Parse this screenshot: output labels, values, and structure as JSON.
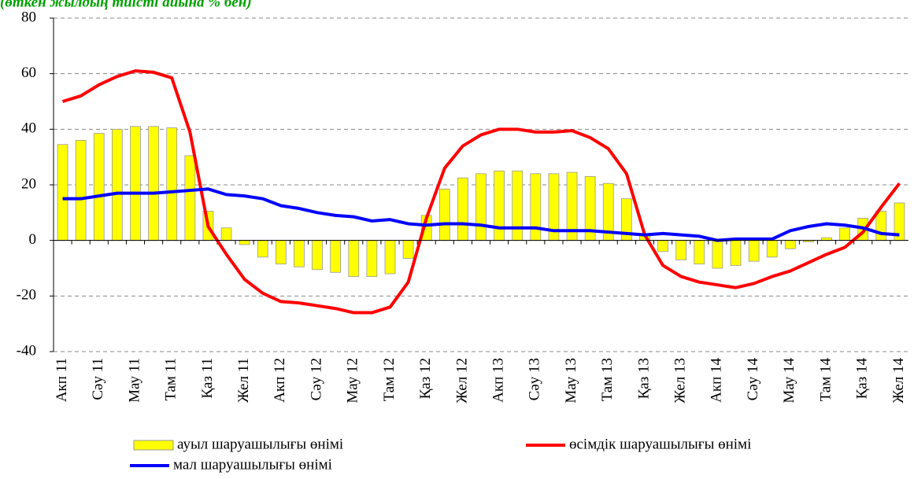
{
  "chart_data": {
    "type": "bar",
    "title": "(өткен жылдың тиісті айына % бен)",
    "categories": [
      "Акп 11",
      null,
      "Сәу 11",
      null,
      "Мау 11",
      null,
      "Там 11",
      null,
      "Қаз 11",
      null,
      "Жел 11",
      null,
      "Акп 12",
      null,
      "Сәу 12",
      null,
      "Мау 12",
      null,
      "Там 12",
      null,
      "Қаз 12",
      null,
      "Жел 12",
      null,
      "Акп 13",
      null,
      "Сәу 13",
      null,
      "Мау 13",
      null,
      "Там 13",
      null,
      "Қаз 13",
      null,
      "Жел 13",
      null,
      "Акп 14",
      null,
      "Сәу 14",
      null,
      "Мау 14",
      null,
      "Там 14",
      null,
      "Қаз 14",
      null,
      "Жел 14"
    ],
    "series": [
      {
        "name": "ауыл шаруашылығы өнімі",
        "type": "bar",
        "color": "#ffff00",
        "values": [
          34.5,
          36,
          38.5,
          40,
          41,
          41,
          40.5,
          30.5,
          10.5,
          4.5,
          -1.5,
          -6,
          -8.5,
          -9.5,
          -10.5,
          -11.5,
          -13,
          -13,
          -12,
          -6.5,
          9,
          18.5,
          22.5,
          24,
          25,
          25,
          24,
          24,
          24.5,
          23,
          20.5,
          15,
          2,
          -4,
          -7,
          -8.5,
          -10,
          -9,
          -7.5,
          -6,
          -3,
          -0.5,
          1,
          4.5,
          8,
          10.5,
          13.5
        ]
      },
      {
        "name": "өсімдік шаруашылығы өнімі",
        "type": "line",
        "color": "#ff0000",
        "values": [
          50,
          52,
          56,
          59,
          61,
          60.5,
          58.5,
          39,
          5,
          -5,
          -14,
          -19,
          -22,
          -22.5,
          -23.5,
          -24.5,
          -26,
          -26,
          -24,
          -15,
          8,
          26,
          34,
          38,
          40,
          40,
          39,
          39,
          39.5,
          37,
          33,
          24,
          2,
          -9,
          -13,
          -15,
          -16,
          -17,
          -15.5,
          -13,
          -11,
          -8,
          -5,
          -2.5,
          3,
          12,
          20.5
        ]
      },
      {
        "name": "мал шаруашылығы өнімі",
        "type": "line",
        "color": "#0000ff",
        "values": [
          15,
          15,
          16,
          17,
          17,
          17,
          17.5,
          18,
          18.5,
          16.5,
          16,
          15,
          12.5,
          11.5,
          10,
          9,
          8.5,
          7,
          7.5,
          6,
          5.5,
          6,
          6,
          5.5,
          4.5,
          4.5,
          4.5,
          3.5,
          3.5,
          3.5,
          3,
          2.5,
          2,
          2.5,
          2,
          1.5,
          0,
          0.5,
          0.5,
          0.5,
          3.5,
          5,
          6,
          5.5,
          4.5,
          2.5,
          2
        ]
      }
    ],
    "ylim": [
      -40,
      80
    ],
    "yticks": [
      -40,
      -20,
      0,
      20,
      40,
      60,
      80
    ],
    "grid": true
  }
}
